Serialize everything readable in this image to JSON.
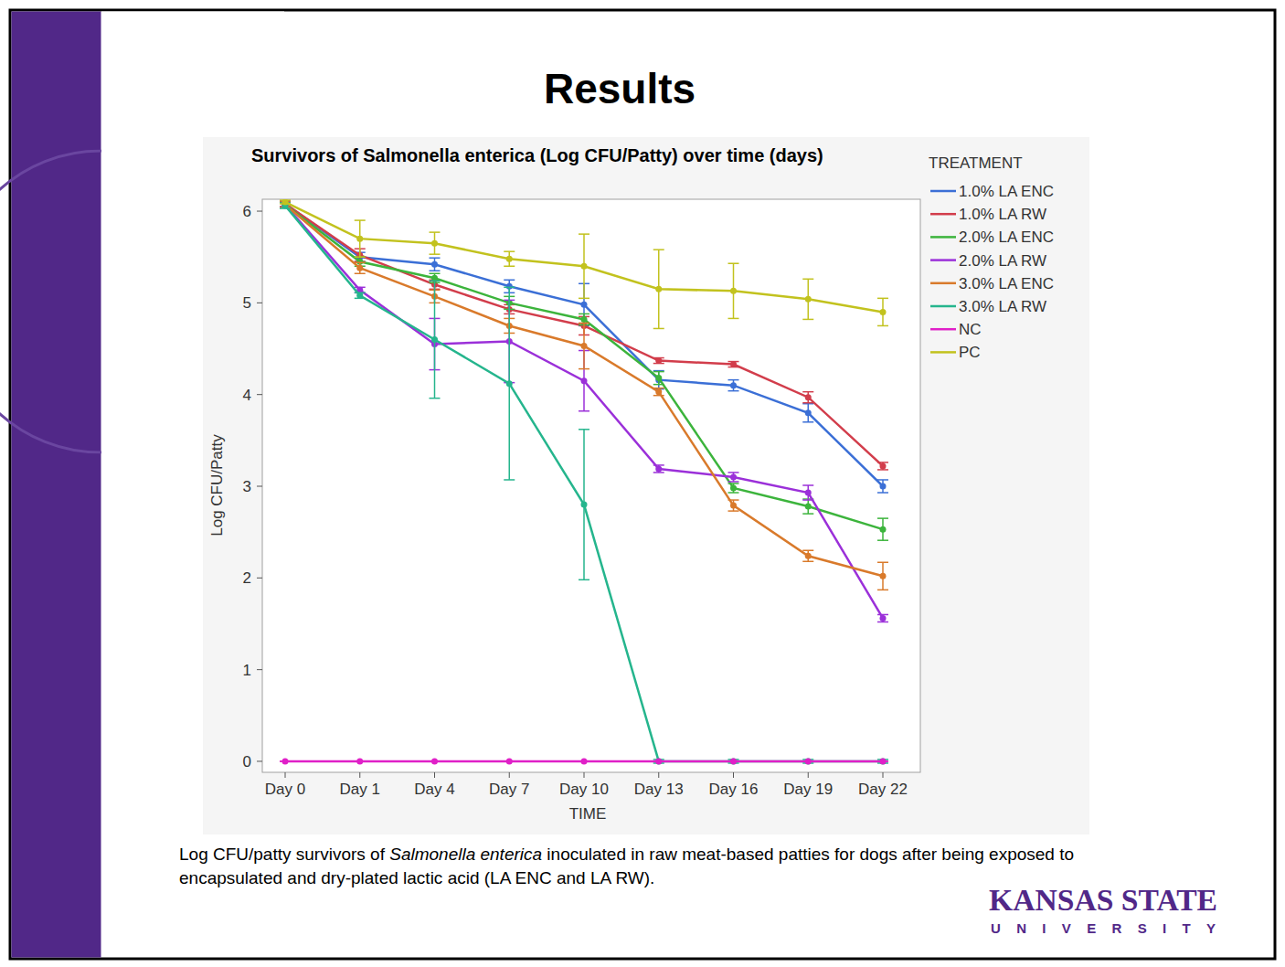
{
  "slide": {
    "heading": "Results",
    "caption": [
      {
        "text": "Log CFU/patty survivors of ",
        "italic": false
      },
      {
        "text": "Salmonella enterica",
        "italic": true
      },
      {
        "text": " inoculated in raw meat-based patties for dogs after being exposed to encapsulated and dry-plated lactic acid (LA ENC and LA RW).",
        "italic": false
      }
    ],
    "logo": {
      "line1": "KANSAS STATE",
      "line2": "UNIVERSITY"
    }
  },
  "chart_data": {
    "type": "line",
    "title": "Survivors of Salmonella enterica (Log CFU/Patty) over time (days)",
    "x_label": "TIME",
    "y_label": "Log CFU/Patty",
    "legend_title": "TREATMENT",
    "legend": "right",
    "grid": false,
    "marker": "circle",
    "categories": [
      "Day 0",
      "Day 1",
      "Day 4",
      "Day 7",
      "Day 10",
      "Day 13",
      "Day 16",
      "Day 19",
      "Day 22"
    ],
    "ylim": [
      -0.12,
      6.13
    ],
    "yticks": [
      0,
      1,
      2,
      3,
      4,
      5,
      6
    ],
    "series": [
      {
        "name": "1.0% LA ENC",
        "color": "#3b6fd6",
        "values": [
          6.08,
          5.5,
          5.42,
          5.18,
          4.98,
          4.16,
          4.1,
          3.8,
          3.0
        ],
        "errors": [
          0.03,
          0.05,
          0.07,
          0.07,
          0.23,
          0.1,
          0.06,
          0.1,
          0.07
        ]
      },
      {
        "name": "1.0% LA RW",
        "color": "#d23d4b",
        "values": [
          6.08,
          5.52,
          5.2,
          4.93,
          4.75,
          4.37,
          4.33,
          3.97,
          3.22
        ],
        "errors": [
          0.03,
          0.07,
          0.05,
          0.05,
          0.1,
          0.03,
          0.03,
          0.06,
          0.04
        ]
      },
      {
        "name": "2.0% LA ENC",
        "color": "#3cb43c",
        "values": [
          6.07,
          5.45,
          5.27,
          5.0,
          4.82,
          4.18,
          2.98,
          2.78,
          2.53
        ],
        "errors": [
          0.03,
          0.05,
          0.05,
          0.07,
          0.06,
          0.07,
          0.05,
          0.08,
          0.12
        ]
      },
      {
        "name": "2.0% LA RW",
        "color": "#9b30d9",
        "values": [
          6.07,
          5.14,
          4.55,
          4.58,
          4.15,
          3.19,
          3.1,
          2.93,
          1.56
        ],
        "errors": [
          0.03,
          0.03,
          0.28,
          0.45,
          0.33,
          0.04,
          0.05,
          0.08,
          0.04
        ]
      },
      {
        "name": "3.0% LA ENC",
        "color": "#d97a2b",
        "values": [
          6.07,
          5.38,
          5.07,
          4.75,
          4.53,
          4.03,
          2.79,
          2.24,
          2.02
        ],
        "errors": [
          0.03,
          0.06,
          0.07,
          0.08,
          0.25,
          0.04,
          0.06,
          0.06,
          0.15
        ]
      },
      {
        "name": "3.0% LA RW",
        "color": "#25b58d",
        "values": [
          6.06,
          5.08,
          4.6,
          4.12,
          2.8,
          0,
          0,
          0,
          0
        ],
        "errors": [
          0.03,
          0.03,
          0.64,
          1.05,
          0.82,
          0.02,
          0.02,
          0.02,
          0.02
        ]
      },
      {
        "name": "NC",
        "color": "#e020c8",
        "values": [
          0,
          0,
          0,
          0,
          0,
          0,
          0,
          0,
          0
        ],
        "errors": [
          0,
          0,
          0,
          0,
          0,
          0,
          0,
          0,
          0
        ]
      },
      {
        "name": "PC",
        "color": "#c2c21e",
        "values": [
          6.1,
          5.7,
          5.65,
          5.48,
          5.4,
          5.15,
          5.13,
          5.04,
          4.9
        ],
        "errors": [
          0.02,
          0.2,
          0.12,
          0.08,
          0.35,
          0.43,
          0.3,
          0.22,
          0.15
        ]
      }
    ]
  }
}
